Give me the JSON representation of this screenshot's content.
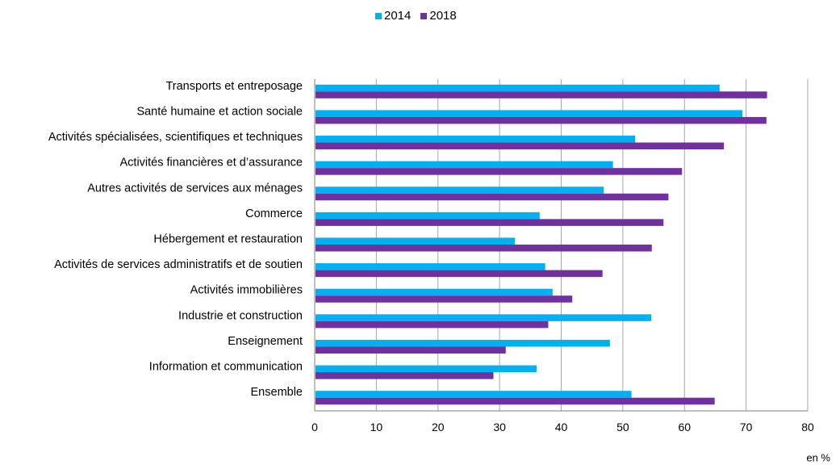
{
  "chart_data": {
    "type": "bar",
    "orientation": "horizontal",
    "categories": [
      "Transports et entreposage",
      "Santé humaine et action sociale",
      "Activités spécialisées, scientifiques et techniques",
      "Activités financières et d’assurance",
      "Autres activités de services aux ménages",
      "Commerce",
      "Hébergement et restauration",
      "Activités de services administratifs et de soutien",
      "Activités immobilières",
      "Industrie et construction",
      "Enseignement",
      "Information et communication",
      "Ensemble"
    ],
    "series": [
      {
        "name": "2014",
        "color": "#00b0f0",
        "values": [
          65.7,
          69.4,
          52.0,
          48.4,
          46.9,
          36.5,
          32.5,
          37.4,
          38.6,
          54.6,
          47.9,
          36.0,
          51.4
        ]
      },
      {
        "name": "2018",
        "color": "#7030a0",
        "values": [
          73.4,
          73.3,
          66.4,
          59.6,
          57.4,
          56.6,
          54.7,
          46.7,
          41.8,
          37.9,
          31.0,
          29.0,
          64.9
        ]
      }
    ],
    "xlim": [
      0,
      80
    ],
    "xticks": [
      "0",
      "10",
      "20",
      "30",
      "40",
      "50",
      "60",
      "70",
      "80"
    ],
    "unit_label": "en %",
    "grid": true,
    "legend_position": "top"
  }
}
